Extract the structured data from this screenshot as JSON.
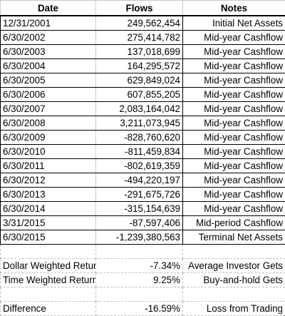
{
  "headers": {
    "date": "Date",
    "flows": "Flows",
    "notes": "Notes"
  },
  "rows": [
    {
      "date": "12/31/2001",
      "flow": "249,562,454",
      "note": "Initial Net Assets"
    },
    {
      "date": "6/30/2002",
      "flow": "275,414,782",
      "note": "Mid-year Cashflow"
    },
    {
      "date": "6/30/2003",
      "flow": "137,018,699",
      "note": "Mid-year Cashflow"
    },
    {
      "date": "6/30/2004",
      "flow": "164,295,572",
      "note": "Mid-year Cashflow"
    },
    {
      "date": "6/30/2005",
      "flow": "629,849,024",
      "note": "Mid-year Cashflow"
    },
    {
      "date": "6/30/2006",
      "flow": "607,855,205",
      "note": "Mid-year Cashflow"
    },
    {
      "date": "6/30/2007",
      "flow": "2,083,164,042",
      "note": "Mid-year Cashflow"
    },
    {
      "date": "6/30/2008",
      "flow": "3,211,073,945",
      "note": "Mid-year Cashflow"
    },
    {
      "date": "6/30/2009",
      "flow": "-828,760,620",
      "note": "Mid-year Cashflow"
    },
    {
      "date": "6/30/2010",
      "flow": "-811,459,834",
      "note": "Mid-year Cashflow"
    },
    {
      "date": "6/30/2011",
      "flow": "-802,619,359",
      "note": "Mid-year Cashflow"
    },
    {
      "date": "6/30/2012",
      "flow": "-494,220,197",
      "note": "Mid-year Cashflow"
    },
    {
      "date": "6/30/2013",
      "flow": "-291,675,726",
      "note": "Mid-year Cashflow"
    },
    {
      "date": "6/30/2014",
      "flow": "-315,154,639",
      "note": "Mid-year Cashflow"
    },
    {
      "date": "3/31/2015",
      "flow": "-87,597,406",
      "note": "Mid-period Cashflow"
    },
    {
      "date": "6/30/2015",
      "flow": "-1,239,380,563",
      "note": "Terminal Net Assets"
    }
  ],
  "summary": {
    "dollar_weighted": {
      "label": "Dollar Weighted Return",
      "value": "-7.34%",
      "note": "Average Investor Gets"
    },
    "time_weighted": {
      "label": "Time Weighted Return",
      "value": "9.25%",
      "note": "Buy-and-hold Gets"
    },
    "difference": {
      "label": "Difference",
      "value": "-16.59%",
      "note": "Loss from Trading"
    }
  }
}
